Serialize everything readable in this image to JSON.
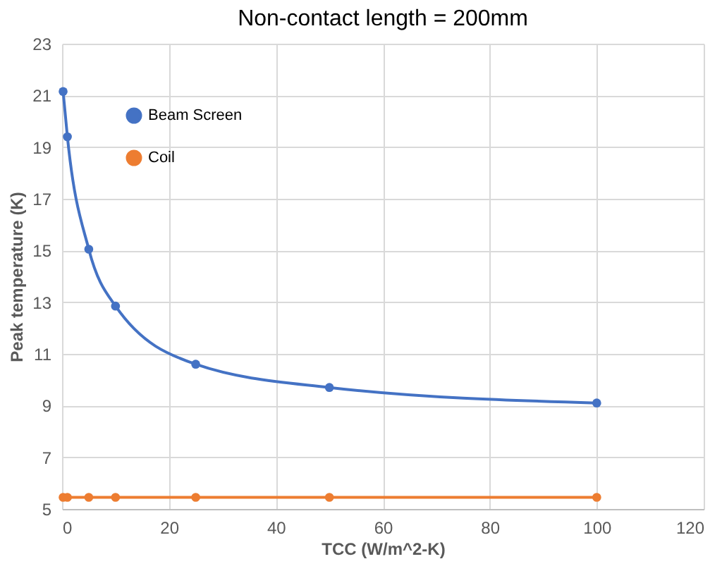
{
  "chart_data": {
    "type": "line",
    "title": "Non-contact length = 200mm",
    "xlabel": "TCC (W/m^2-K)",
    "ylabel": "Peak temperature (K)",
    "x": [
      0.2,
      1,
      5,
      10,
      25,
      50,
      100
    ],
    "series": [
      {
        "name": "Beam Screen",
        "color": "#4472c4",
        "values": [
          21.15,
          19.4,
          15.05,
          12.85,
          10.6,
          9.7,
          9.1
        ]
      },
      {
        "name": "Coil",
        "color": "#ed7d31",
        "values": [
          5.45,
          5.45,
          5.45,
          5.45,
          5.45,
          5.45,
          5.45
        ]
      }
    ],
    "xlim": [
      0,
      120
    ],
    "xticks": [
      0,
      20,
      40,
      60,
      80,
      100,
      120
    ],
    "ylim": [
      5,
      23
    ],
    "yticks": [
      5,
      7,
      9,
      11,
      13,
      15,
      17,
      19,
      21,
      23
    ],
    "grid": true,
    "legend": "top left",
    "marker": "circle",
    "line_style": "solid"
  }
}
